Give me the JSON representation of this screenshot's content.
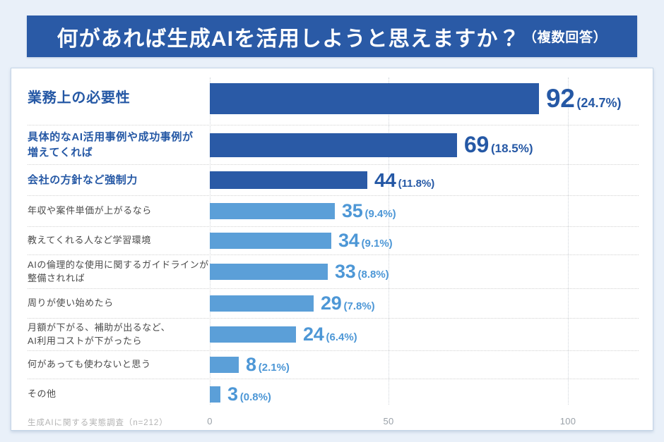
{
  "header": {
    "title": "何があれば生成AIを活用しようと思えますか？",
    "suffix": "（複数回答）"
  },
  "chart_data": {
    "type": "bar",
    "orientation": "horizontal",
    "title": "何があれば生成AIを活用しようと思えますか？（複数回答）",
    "xlabel": "",
    "ylabel": "",
    "xlim": [
      0,
      100
    ],
    "xticks": [
      "0",
      "50",
      "100"
    ],
    "grid": "vertical-dotted",
    "legend": "none",
    "emphasized_top_rows": 3,
    "colors": {
      "emphasis": "#2A5AA6",
      "normal": "#5B9FD8"
    },
    "categories": [
      "業務上の必要性",
      "具体的なAI活用事例や成功事例が\n増えてくれば",
      "会社の方針など強制力",
      "年収や案件単価が上がるなら",
      "教えてくれる人など学習環境",
      "AIの倫理的な使用に関するガイドラインが\n整備されれば",
      "周りが使い始めたら",
      "月額が下がる、補助が出るなど、\nAI利用コストが下がったら",
      "何があっても使わないと思う",
      "その他"
    ],
    "values": [
      92,
      69,
      44,
      35,
      34,
      33,
      29,
      24,
      8,
      3
    ],
    "percents": [
      "24.7",
      "18.5",
      "11.8",
      "9.4",
      "9.1",
      "8.8",
      "7.8",
      "6.4",
      "2.1",
      "0.8"
    ]
  },
  "footer": {
    "source": "生成AIに関する実態調査（n=212）"
  }
}
